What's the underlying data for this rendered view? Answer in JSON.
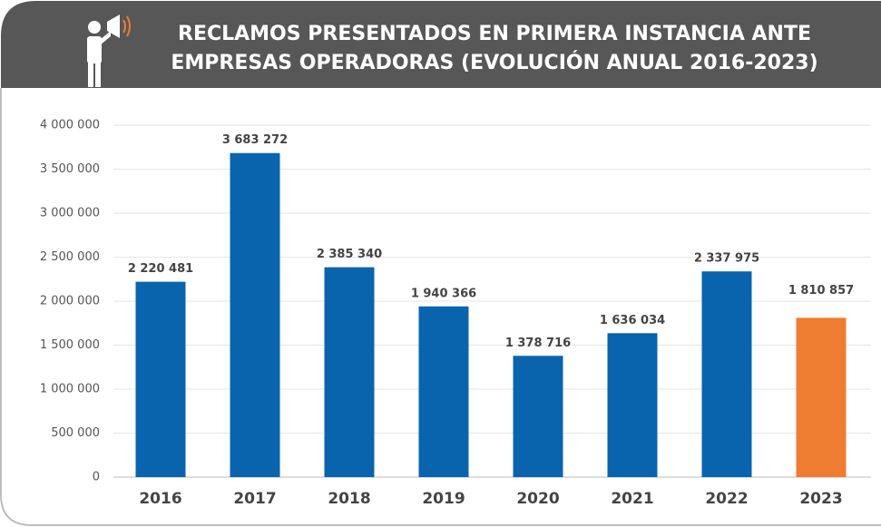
{
  "chart_data": {
    "type": "bar",
    "title": [
      "RECLAMOS PRESENTADOS EN PRIMERA INSTANCIA ANTE",
      "EMPRESAS OPERADORAS (EVOLUCIÓN ANUAL 2016-2023)"
    ],
    "categories": [
      "2016",
      "2017",
      "2018",
      "2019",
      "2020",
      "2021",
      "2022",
      "2023"
    ],
    "values": [
      2220481,
      3683272,
      2385340,
      1940366,
      1378716,
      1636034,
      2337975,
      1810857
    ],
    "value_labels": [
      "2 220 481",
      "3 683 272",
      "2 385 340",
      "1 940 366",
      "1 378 716",
      "1 636 034",
      "2 337 975",
      "1 810 857"
    ],
    "color": "#0a64ad",
    "colors": [
      "#0a64ad",
      "#0a64ad",
      "#0a64ad",
      "#0a64ad",
      "#0a64ad",
      "#0a64ad",
      "#0a64ad",
      "#ef7d31"
    ],
    "ylim": [
      0,
      4000000
    ],
    "yticks": [
      0,
      {
        "value": 500000,
        "label": "500 000"
      },
      {
        "value": 1000000,
        "label": "1 000 000"
      },
      {
        "value": 1500000,
        "label": "1 500 000"
      },
      {
        "value": 2000000,
        "label": "2 000 000"
      },
      {
        "value": 2500000,
        "label": "2 500 000"
      },
      {
        "value": 3000000,
        "label": "3 000 000"
      },
      {
        "value": 3500000,
        "label": "3 500 000"
      },
      {
        "value": 4000000,
        "label": "4 000 000"
      }
    ],
    "grid": true
  }
}
